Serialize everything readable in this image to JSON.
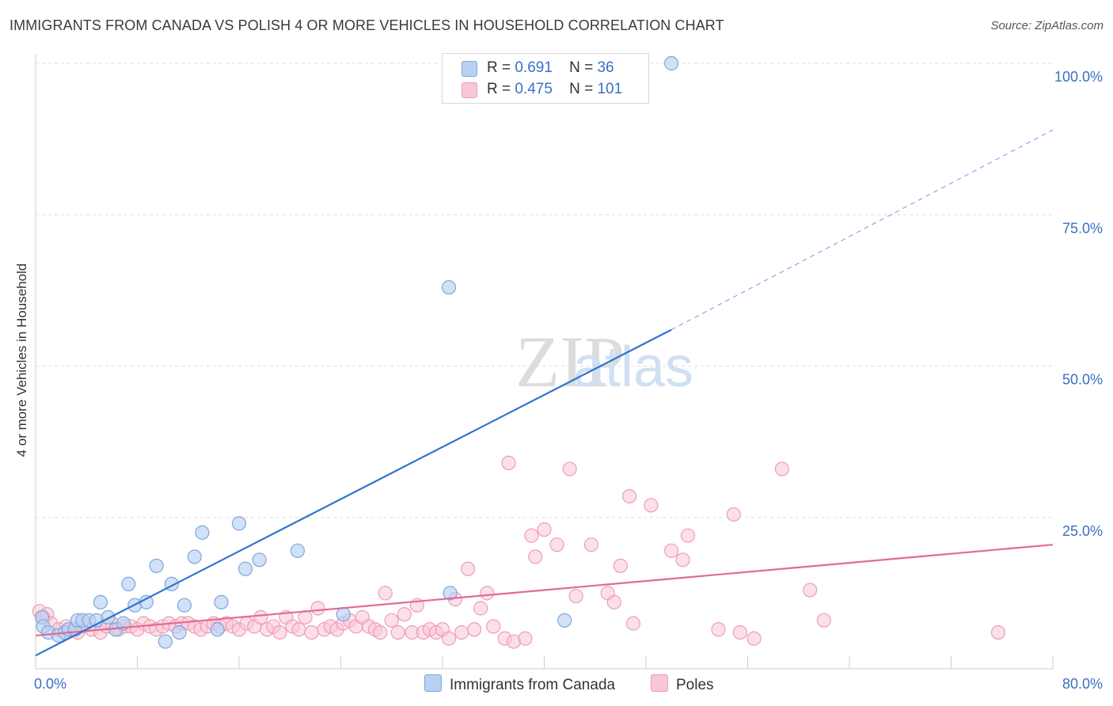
{
  "title": "IMMIGRANTS FROM CANADA VS POLISH 4 OR MORE VEHICLES IN HOUSEHOLD CORRELATION CHART",
  "source": "Source: ZipAtlas.com",
  "watermark": {
    "zip": "ZIP",
    "atlas": "atlas"
  },
  "legend": {
    "series1": {
      "r_label": "R =",
      "r_value": "0.691",
      "n_label": "N =",
      "n_value": "36"
    },
    "series2": {
      "r_label": "R =",
      "r_value": "0.475",
      "n_label": "N =",
      "n_value": "101"
    }
  },
  "bottom_legend": {
    "series1": "Immigrants from Canada",
    "series2": "Poles"
  },
  "colors": {
    "blue_fill": "#b8d1f2",
    "blue_stroke": "#7fa6dc",
    "blue_line": "#2f74d0",
    "pink_fill": "#f9c6d6",
    "pink_stroke": "#ee9cb8",
    "pink_line": "#e26a94",
    "axis_text": "#3a6fc4"
  },
  "chart_data": {
    "type": "scatter",
    "title": "IMMIGRANTS FROM CANADA VS POLISH 4 OR MORE VEHICLES IN HOUSEHOLD CORRELATION CHART",
    "xlabel": "",
    "ylabel": "4 or more Vehicles in Household",
    "xlim": [
      0,
      80
    ],
    "ylim": [
      0,
      100
    ],
    "x_tick_labels": [
      "0.0%",
      "80.0%"
    ],
    "y_tick_labels": [
      "25.0%",
      "50.0%",
      "75.0%",
      "100.0%"
    ],
    "y_ticks": [
      25,
      50,
      75,
      100
    ],
    "grid": true,
    "series": [
      {
        "name": "Immigrants from Canada",
        "color": "blue",
        "trend": {
          "x0": 0,
          "y0": 2.2,
          "x1": 50,
          "y1": 56,
          "dashed_to_x": 80,
          "dashed_to_y": 89
        },
        "points": [
          [
            0.5,
            8.5
          ],
          [
            0.6,
            7.0
          ],
          [
            1.0,
            6.0
          ],
          [
            1.8,
            5.5
          ],
          [
            2.3,
            6.0
          ],
          [
            2.6,
            6.5
          ],
          [
            3.1,
            6.5
          ],
          [
            3.3,
            8.0
          ],
          [
            3.7,
            8.0
          ],
          [
            4.2,
            8.0
          ],
          [
            4.8,
            8.0
          ],
          [
            5.1,
            11.0
          ],
          [
            5.7,
            8.5
          ],
          [
            6.3,
            6.5
          ],
          [
            6.9,
            7.5
          ],
          [
            7.3,
            14.0
          ],
          [
            7.8,
            10.5
          ],
          [
            8.7,
            11.0
          ],
          [
            9.5,
            17.0
          ],
          [
            10.2,
            4.5
          ],
          [
            10.7,
            14.0
          ],
          [
            11.3,
            6.0
          ],
          [
            11.7,
            10.5
          ],
          [
            12.5,
            18.5
          ],
          [
            13.1,
            22.5
          ],
          [
            14.3,
            6.5
          ],
          [
            14.6,
            11.0
          ],
          [
            16.0,
            24.0
          ],
          [
            16.5,
            16.5
          ],
          [
            17.6,
            18.0
          ],
          [
            20.6,
            19.5
          ],
          [
            24.2,
            9.0
          ],
          [
            32.6,
            12.5
          ],
          [
            32.5,
            63.0
          ],
          [
            41.6,
            8.0
          ],
          [
            50.0,
            100.0
          ]
        ]
      },
      {
        "name": "Poles",
        "color": "pink",
        "trend": {
          "x0": 0,
          "y0": 5.5,
          "x1": 80,
          "y1": 20.5
        },
        "points": [
          [
            0.3,
            9.5
          ],
          [
            0.6,
            8.5
          ],
          [
            0.9,
            9.0
          ],
          [
            1.2,
            7.5
          ],
          [
            1.8,
            6.5
          ],
          [
            2.4,
            7.0
          ],
          [
            3.0,
            6.5
          ],
          [
            3.3,
            6.0
          ],
          [
            3.8,
            7.0
          ],
          [
            4.4,
            6.5
          ],
          [
            5.1,
            6.0
          ],
          [
            5.6,
            7.0
          ],
          [
            6.0,
            7.5
          ],
          [
            6.5,
            6.5
          ],
          [
            7.0,
            7.0
          ],
          [
            7.5,
            7.0
          ],
          [
            8.0,
            6.5
          ],
          [
            8.5,
            7.5
          ],
          [
            9.0,
            7.0
          ],
          [
            9.5,
            6.5
          ],
          [
            10.0,
            7.0
          ],
          [
            10.5,
            7.5
          ],
          [
            11.0,
            7.0
          ],
          [
            11.5,
            7.5
          ],
          [
            12.0,
            7.5
          ],
          [
            12.5,
            7.0
          ],
          [
            13.0,
            6.5
          ],
          [
            13.5,
            7.0
          ],
          [
            14.0,
            7.5
          ],
          [
            14.5,
            7.0
          ],
          [
            15.0,
            7.5
          ],
          [
            15.5,
            7.0
          ],
          [
            16.0,
            6.5
          ],
          [
            16.6,
            7.5
          ],
          [
            17.2,
            7.0
          ],
          [
            17.7,
            8.5
          ],
          [
            18.2,
            6.5
          ],
          [
            18.7,
            7.0
          ],
          [
            19.2,
            6.0
          ],
          [
            19.7,
            8.5
          ],
          [
            20.2,
            7.0
          ],
          [
            20.7,
            6.5
          ],
          [
            21.2,
            8.5
          ],
          [
            21.7,
            6.0
          ],
          [
            22.2,
            10.0
          ],
          [
            22.7,
            6.5
          ],
          [
            23.2,
            7.0
          ],
          [
            23.7,
            6.5
          ],
          [
            24.2,
            7.5
          ],
          [
            24.7,
            8.0
          ],
          [
            25.2,
            7.0
          ],
          [
            25.7,
            8.5
          ],
          [
            26.2,
            7.0
          ],
          [
            26.7,
            6.5
          ],
          [
            27.1,
            6.0
          ],
          [
            27.5,
            12.5
          ],
          [
            28.0,
            8.0
          ],
          [
            28.5,
            6.0
          ],
          [
            29.0,
            9.0
          ],
          [
            29.6,
            6.0
          ],
          [
            30.0,
            10.5
          ],
          [
            30.5,
            6.0
          ],
          [
            31.0,
            6.5
          ],
          [
            31.5,
            6.0
          ],
          [
            32.0,
            6.5
          ],
          [
            32.5,
            5.0
          ],
          [
            33.0,
            11.5
          ],
          [
            33.5,
            6.0
          ],
          [
            34.0,
            16.5
          ],
          [
            34.5,
            6.5
          ],
          [
            35.0,
            10.0
          ],
          [
            35.5,
            12.5
          ],
          [
            36.0,
            7.0
          ],
          [
            36.9,
            5.0
          ],
          [
            37.2,
            34.0
          ],
          [
            37.6,
            4.5
          ],
          [
            38.5,
            5.0
          ],
          [
            39.0,
            22.0
          ],
          [
            39.3,
            18.5
          ],
          [
            40.0,
            23.0
          ],
          [
            41.0,
            20.5
          ],
          [
            42.0,
            33.0
          ],
          [
            42.5,
            12.0
          ],
          [
            43.7,
            20.5
          ],
          [
            45.0,
            12.5
          ],
          [
            45.5,
            11.0
          ],
          [
            46.0,
            17.0
          ],
          [
            46.7,
            28.5
          ],
          [
            47.0,
            7.5
          ],
          [
            48.4,
            27.0
          ],
          [
            50.0,
            19.5
          ],
          [
            50.9,
            18.0
          ],
          [
            51.3,
            22.0
          ],
          [
            53.7,
            6.5
          ],
          [
            54.9,
            25.5
          ],
          [
            55.4,
            6.0
          ],
          [
            56.5,
            5.0
          ],
          [
            58.7,
            33.0
          ],
          [
            60.9,
            13.0
          ],
          [
            62.0,
            8.0
          ],
          [
            75.7,
            6.0
          ]
        ]
      }
    ]
  }
}
